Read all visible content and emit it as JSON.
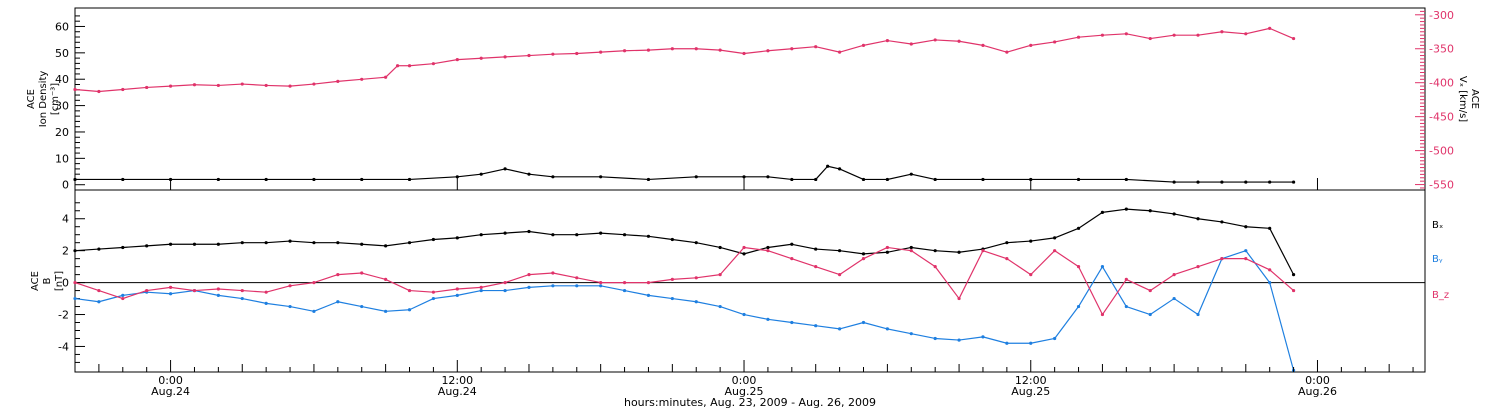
{
  "chart_data": [
    {
      "type": "scatter",
      "x_range_hours": [
        -4.0,
        52.5
      ],
      "x_ticks": [
        {
          "hour": 0,
          "time": "0:00",
          "day": "Aug.24"
        },
        {
          "hour": 12,
          "time": "12:00",
          "day": "Aug.24"
        },
        {
          "hour": 24,
          "time": "0:00",
          "day": "Aug.25"
        },
        {
          "hour": 36,
          "time": "12:00",
          "day": "Aug.25"
        },
        {
          "hour": 48,
          "time": "0:00",
          "day": "Aug.26"
        }
      ],
      "xlabel": "hours:minutes, Aug. 23, 2009 - Aug. 26, 2009",
      "left_axis": {
        "label_line1": "ACE",
        "label_line2": "Ion Density",
        "label_units": "[cm⁻³]",
        "ylim": [
          -2,
          67
        ],
        "ticks": [
          "0",
          "10",
          "20",
          "30",
          "40",
          "50",
          "60"
        ]
      },
      "right_axis": {
        "label_line1": "ACE",
        "label_line2": "Vₓ [km/s]",
        "ylim": [
          -558,
          -290
        ],
        "ticks": [
          "-300",
          "-350",
          "-400",
          "-450",
          "-500",
          "-550"
        ],
        "color": "#e0336a"
      },
      "series": [
        {
          "color": "#e0336a",
          "axis": "right",
          "x": [
            -4,
            -3,
            -2,
            -1,
            0,
            1,
            2,
            3,
            4,
            5,
            6,
            7,
            8,
            9,
            9.5,
            10,
            11,
            12,
            13,
            14,
            15,
            16,
            17,
            18,
            19,
            20,
            21,
            22,
            23,
            24,
            25,
            26,
            27,
            28,
            29,
            30,
            31,
            32,
            33,
            34,
            35,
            36,
            37,
            38,
            39,
            40,
            41,
            42,
            43,
            44,
            45,
            46,
            47
          ],
          "y": [
            -410,
            -413,
            -410,
            -407,
            -405,
            -403,
            -404,
            -402,
            -404,
            -405,
            -402,
            -398,
            -395,
            -392,
            -375,
            -375,
            -372,
            -366,
            -364,
            -362,
            -360,
            -358,
            -357,
            -355,
            -353,
            -352,
            -350,
            -350,
            -352,
            -357,
            -353,
            -350,
            -347,
            -355,
            -345,
            -338,
            -343,
            -337,
            -339,
            -345,
            -355,
            -345,
            -340,
            -333,
            -330,
            -328,
            -335,
            -330,
            -330,
            -325,
            -328,
            -320,
            -335
          ]
        },
        {
          "color": "#000000",
          "axis": "left",
          "x": [
            -4,
            -2,
            0,
            2,
            4,
            6,
            8,
            10,
            12,
            13,
            14,
            15,
            16,
            18,
            20,
            22,
            24,
            25,
            26,
            27,
            27.5,
            28,
            29,
            30,
            31,
            32,
            34,
            36,
            38,
            40,
            42,
            43,
            44,
            45,
            46,
            47
          ],
          "y": [
            2,
            2,
            2,
            2,
            2,
            2,
            2,
            2,
            3,
            4,
            6,
            4,
            3,
            3,
            2,
            3,
            3,
            3,
            2,
            2,
            7,
            6,
            2,
            2,
            4,
            2,
            2,
            2,
            2,
            2,
            1,
            1,
            1,
            1,
            1,
            1
          ]
        }
      ]
    },
    {
      "type": "scatter",
      "x_range_hours": [
        -4.0,
        52.5
      ],
      "ylim": [
        -5.6,
        5.8
      ],
      "y_ticks": [
        "4",
        "2",
        "0",
        "-2",
        "-4"
      ],
      "ylabel_line1": "ACE",
      "ylabel_line2": "B",
      "ylabel_units": "[nT]",
      "zero_line": true,
      "legend": [
        "Bₓ",
        "Bᵧ",
        "B_z"
      ],
      "series": [
        {
          "name": "Bₓ",
          "color": "#000000",
          "x": [
            -4,
            -3,
            -2,
            -1,
            0,
            1,
            2,
            3,
            4,
            5,
            6,
            7,
            8,
            9,
            10,
            11,
            12,
            13,
            14,
            15,
            16,
            17,
            18,
            19,
            20,
            21,
            22,
            23,
            24,
            25,
            26,
            27,
            28,
            29,
            30,
            31,
            32,
            33,
            34,
            35,
            36,
            37,
            38,
            39,
            40,
            41,
            42,
            43,
            44,
            45,
            46,
            47
          ],
          "y": [
            2,
            2.1,
            2.2,
            2.3,
            2.4,
            2.4,
            2.4,
            2.5,
            2.5,
            2.6,
            2.5,
            2.5,
            2.4,
            2.3,
            2.5,
            2.7,
            2.8,
            3,
            3.1,
            3.2,
            3,
            3,
            3.1,
            3,
            2.9,
            2.7,
            2.5,
            2.2,
            1.8,
            2.2,
            2.4,
            2.1,
            2,
            1.8,
            1.9,
            2.2,
            2,
            1.9,
            2.1,
            2.5,
            2.6,
            2.8,
            3.4,
            4.4,
            4.6,
            4.5,
            4.3,
            4.0,
            3.8,
            3.5,
            3.4,
            0.5
          ]
        },
        {
          "name": "Bᵧ",
          "color": "#1e7fe0",
          "x": [
            -4,
            -3,
            -2,
            -1,
            0,
            1,
            2,
            3,
            4,
            5,
            6,
            7,
            8,
            9,
            10,
            11,
            12,
            13,
            14,
            15,
            16,
            17,
            18,
            19,
            20,
            21,
            22,
            23,
            24,
            25,
            26,
            27,
            28,
            29,
            30,
            31,
            32,
            33,
            34,
            35,
            36,
            37,
            38,
            39,
            40,
            41,
            42,
            43,
            44,
            45,
            46,
            47
          ],
          "y": [
            -1,
            -1.2,
            -0.8,
            -0.6,
            -0.7,
            -0.5,
            -0.8,
            -1,
            -1.3,
            -1.5,
            -1.8,
            -1.2,
            -1.5,
            -1.8,
            -1.7,
            -1.0,
            -0.8,
            -0.5,
            -0.5,
            -0.3,
            -0.2,
            -0.2,
            -0.2,
            -0.5,
            -0.8,
            -1.0,
            -1.2,
            -1.5,
            -2.0,
            -2.3,
            -2.5,
            -2.7,
            -2.9,
            -2.5,
            -2.9,
            -3.2,
            -3.5,
            -3.6,
            -3.4,
            -3.8,
            -3.8,
            -3.5,
            -1.5,
            1.0,
            -1.5,
            -2.0,
            -1.0,
            -2.0,
            1.5,
            2.0,
            0,
            -5.5
          ]
        },
        {
          "name": "B_z",
          "color": "#e0336a",
          "x": [
            -4,
            -3,
            -2,
            -1,
            0,
            1,
            2,
            3,
            4,
            5,
            6,
            7,
            8,
            9,
            10,
            11,
            12,
            13,
            14,
            15,
            16,
            17,
            18,
            19,
            20,
            21,
            22,
            23,
            24,
            25,
            26,
            27,
            28,
            29,
            30,
            31,
            32,
            33,
            34,
            35,
            36,
            37,
            38,
            39,
            40,
            41,
            42,
            43,
            44,
            45,
            46,
            47
          ],
          "y": [
            0,
            -0.5,
            -1,
            -0.5,
            -0.3,
            -0.5,
            -0.4,
            -0.5,
            -0.6,
            -0.2,
            0,
            0.5,
            0.6,
            0.2,
            -0.5,
            -0.6,
            -0.4,
            -0.3,
            0,
            0.5,
            0.6,
            0.3,
            0,
            0,
            0,
            0.2,
            0.3,
            0.5,
            2.2,
            2.0,
            1.5,
            1.0,
            0.5,
            1.5,
            2.2,
            2.0,
            1.0,
            -1.0,
            2.0,
            1.5,
            0.5,
            2.0,
            1.0,
            -2.0,
            0.2,
            -0.5,
            0.5,
            1.0,
            1.5,
            1.5,
            0.8,
            -0.5
          ]
        }
      ]
    }
  ]
}
